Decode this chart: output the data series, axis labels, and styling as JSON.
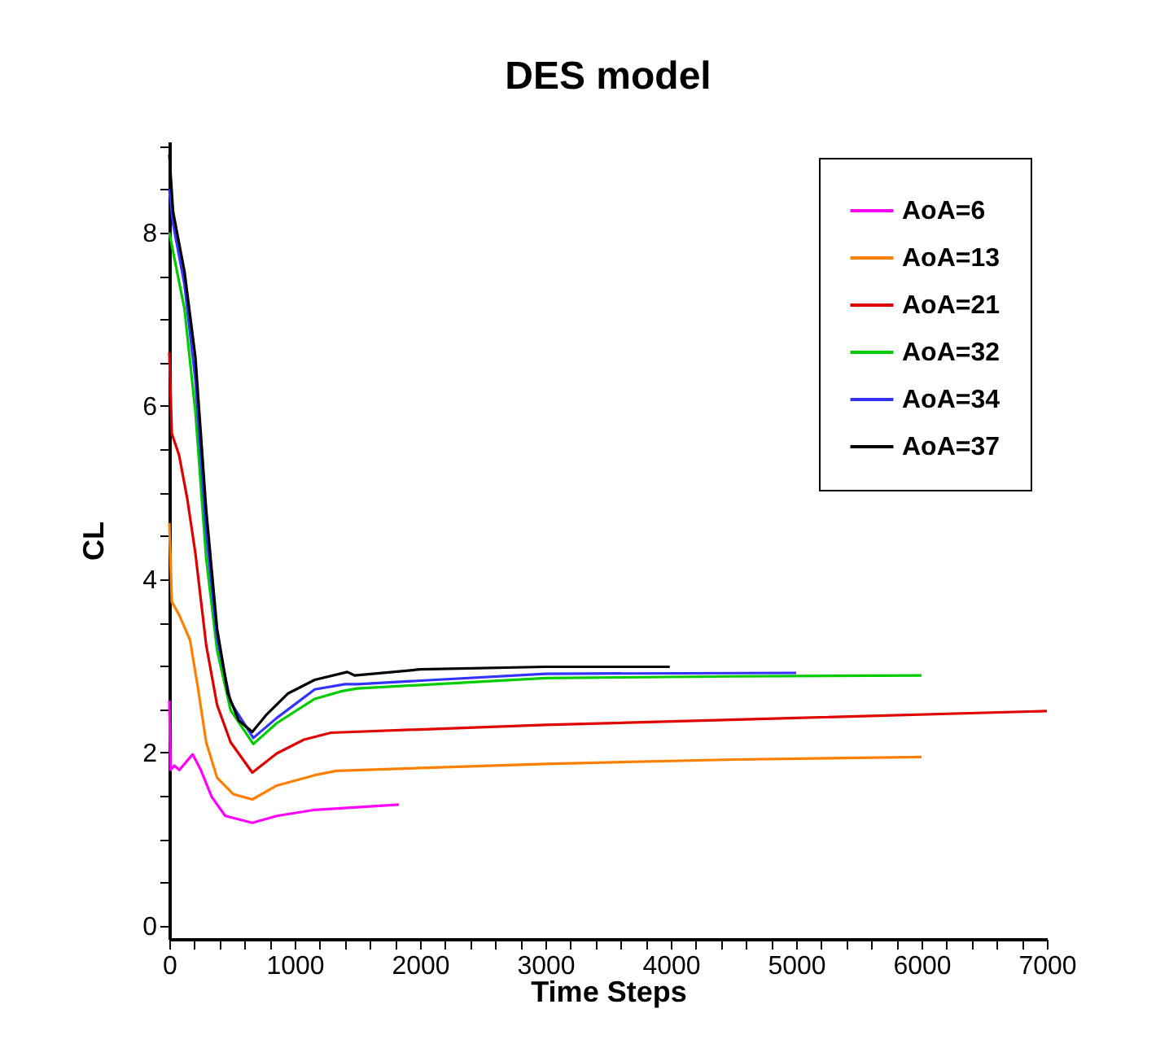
{
  "chart_data": {
    "type": "line",
    "title": "DES model",
    "xlabel": "Time Steps",
    "ylabel": "CL",
    "xlim": [
      0,
      7000
    ],
    "ylim": [
      -0.15,
      9.05
    ],
    "xticks": [
      0,
      {
        "value": 200,
        "label": null
      },
      {
        "value": 400,
        "label": null
      },
      {
        "value": 600,
        "label": null
      },
      {
        "value": 800,
        "label": null
      },
      1000,
      {
        "value": 1200,
        "label": null
      },
      {
        "value": 1400,
        "label": null
      },
      {
        "value": 1600,
        "label": null
      },
      {
        "value": 1800,
        "label": null
      },
      2000,
      {
        "value": 2200,
        "label": null
      },
      {
        "value": 2400,
        "label": null
      },
      {
        "value": 2600,
        "label": null
      },
      {
        "value": 2800,
        "label": null
      },
      3000,
      {
        "value": 3200,
        "label": null
      },
      {
        "value": 3400,
        "label": null
      },
      {
        "value": 3600,
        "label": null
      },
      {
        "value": 3800,
        "label": null
      },
      4000,
      {
        "value": 4200,
        "label": null
      },
      {
        "value": 4400,
        "label": null
      },
      {
        "value": 4600,
        "label": null
      },
      {
        "value": 4800,
        "label": null
      },
      5000,
      {
        "value": 5200,
        "label": null
      },
      {
        "value": 5400,
        "label": null
      },
      {
        "value": 5600,
        "label": null
      },
      {
        "value": 5800,
        "label": null
      },
      6000,
      {
        "value": 6200,
        "label": null
      },
      {
        "value": 6400,
        "label": null
      },
      {
        "value": 6600,
        "label": null
      },
      {
        "value": 6800,
        "label": null
      },
      7000
    ],
    "yticks": [
      0,
      {
        "value": 0.5,
        "label": null
      },
      {
        "value": 1,
        "label": null
      },
      {
        "value": 1.5,
        "label": null
      },
      2,
      {
        "value": 2.5,
        "label": null
      },
      {
        "value": 3,
        "label": null
      },
      {
        "value": 3.5,
        "label": null
      },
      4,
      {
        "value": 4.5,
        "label": null
      },
      {
        "value": 5,
        "label": null
      },
      {
        "value": 5.5,
        "label": null
      },
      6,
      {
        "value": 6.5,
        "label": null
      },
      {
        "value": 7,
        "label": null
      },
      {
        "value": 7.5,
        "label": null
      },
      8,
      {
        "value": 8.5,
        "label": null
      },
      {
        "value": 9,
        "label": null
      }
    ],
    "grid": false,
    "legend": "top right",
    "marker": "none",
    "line_style": "solid",
    "series": [
      {
        "name": "AoA=6",
        "color": "#ff00ff",
        "x": [
          0,
          10,
          40,
          80,
          186,
          251,
          338,
          446,
          662,
          857,
          1160,
          1831
        ],
        "values": [
          2.6,
          1.8,
          1.85,
          1.8,
          1.98,
          1.8,
          1.49,
          1.27,
          1.19,
          1.27,
          1.34,
          1.4
        ]
      },
      {
        "name": "AoA=13",
        "color": "#ff8000",
        "x": [
          0,
          20,
          78,
          165,
          229,
          294,
          381,
          511,
          662,
          857,
          1160,
          1333,
          3000,
          4500,
          6000
        ],
        "values": [
          4.65,
          3.74,
          3.59,
          3.3,
          2.74,
          2.12,
          1.71,
          1.52,
          1.46,
          1.62,
          1.74,
          1.79,
          1.87,
          1.92,
          1.95
        ]
      },
      {
        "name": "AoA=21",
        "color": "#e00000",
        "x": [
          0,
          20,
          78,
          143,
          208,
          294,
          381,
          489,
          662,
          857,
          1074,
          1290,
          3000,
          5000,
          7000
        ],
        "values": [
          6.62,
          5.68,
          5.43,
          4.93,
          4.3,
          3.24,
          2.55,
          2.12,
          1.77,
          1.99,
          2.15,
          2.23,
          2.32,
          2.4,
          2.48
        ]
      },
      {
        "name": "AoA=32",
        "color": "#00cc00",
        "x": [
          0,
          35,
          121,
          208,
          294,
          381,
          489,
          670,
          857,
          1160,
          1377,
          1500,
          3000,
          4500,
          6000
        ],
        "values": [
          8.0,
          7.74,
          7.12,
          5.93,
          4.24,
          3.18,
          2.49,
          2.1,
          2.34,
          2.62,
          2.71,
          2.74,
          2.86,
          2.88,
          2.89
        ]
      },
      {
        "name": "AoA=34",
        "color": "#3333ff",
        "x": [
          0,
          30,
          121,
          208,
          294,
          381,
          489,
          670,
          857,
          1160,
          1400,
          1500,
          3000,
          5000
        ],
        "values": [
          8.5,
          8.1,
          7.4,
          6.3,
          4.55,
          3.32,
          2.58,
          2.17,
          2.4,
          2.73,
          2.79,
          2.79,
          2.91,
          2.92
        ]
      },
      {
        "name": "AoA=37",
        "color": "#000000",
        "x": [
          0,
          30,
          121,
          208,
          294,
          381,
          468,
          554,
          662,
          770,
          944,
          1160,
          1420,
          1480,
          2000,
          3000,
          3992
        ],
        "values": [
          8.9,
          8.24,
          7.55,
          6.56,
          4.8,
          3.43,
          2.68,
          2.37,
          2.24,
          2.43,
          2.68,
          2.84,
          2.93,
          2.89,
          2.96,
          2.99,
          2.99
        ]
      }
    ]
  }
}
